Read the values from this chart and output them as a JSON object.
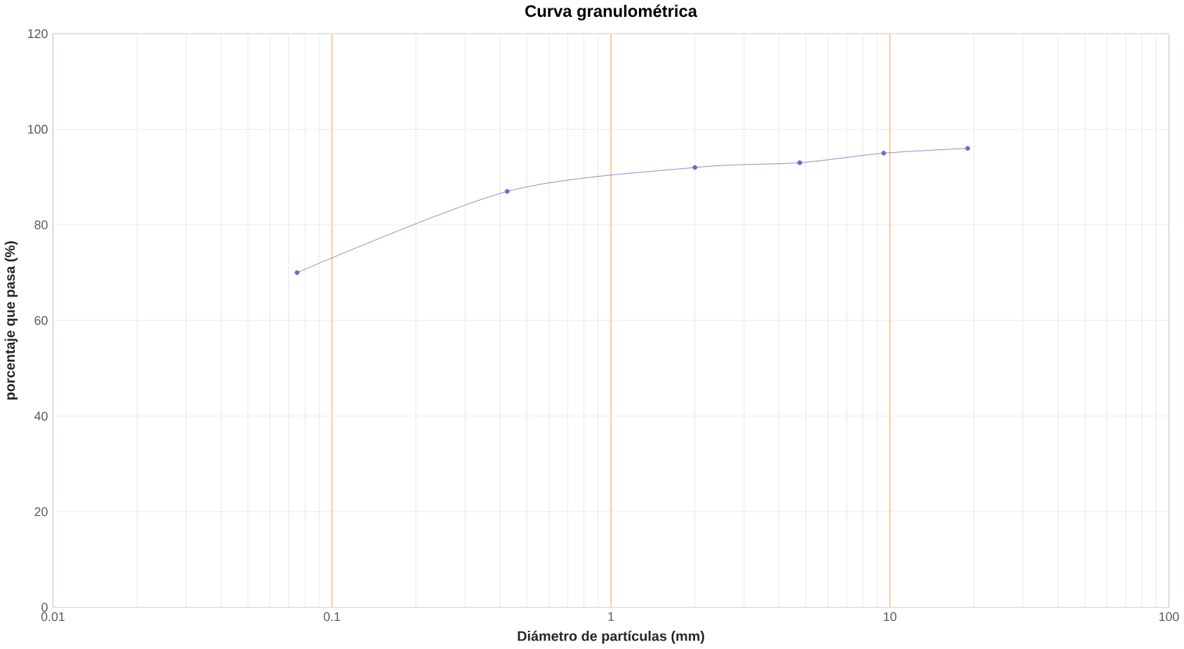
{
  "chart_data": {
    "type": "line",
    "title": "Curva granulométrica",
    "xlabel": "Diámetro de partículas (mm)",
    "ylabel": "porcentaje que pasa (%)",
    "log": "x",
    "grid": true,
    "marker": "circle",
    "line_style": "solid",
    "xlim": [
      0.01,
      100
    ],
    "xticks": [
      0.01,
      0.1,
      1,
      10,
      100
    ],
    "ylim": [
      0,
      120
    ],
    "yticks": [
      0,
      20,
      40,
      60,
      80,
      100,
      120
    ],
    "series": [
      {
        "color": "#6a6ac8",
        "x": [
          0.075,
          0.425,
          2,
          4.75,
          9.5,
          19
        ],
        "values": [
          70,
          87,
          92,
          93,
          95,
          96
        ]
      }
    ]
  }
}
